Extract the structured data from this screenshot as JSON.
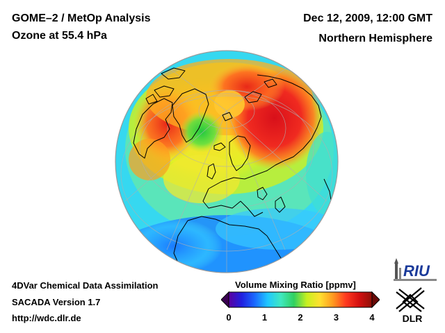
{
  "header": {
    "title_line1": "GOME–2 / MetOp Analysis",
    "title_line2": "Ozone at 55.4 hPa",
    "date": "Dec 12, 2009, 12:00 GMT",
    "region": "Northern Hemisphere"
  },
  "footer": {
    "line1": "4DVar Chemical Data Assimilation",
    "line2": "SACADA Version 1.7",
    "line3": "http://wdc.dlr.de"
  },
  "colorbar": {
    "label": "Volume Mixing Ratio [ppmv]",
    "ticks": [
      "0",
      "1",
      "2",
      "3",
      "4"
    ],
    "min": 0,
    "max": 4,
    "colors": [
      "#5a00a0",
      "#2020e0",
      "#1a6aff",
      "#20c8ff",
      "#40e8c0",
      "#30d060",
      "#c8f020",
      "#ffe030",
      "#ff9a20",
      "#ff3a20",
      "#d41010",
      "#901008"
    ]
  },
  "logos": {
    "riu": "RIU",
    "dlr": "DLR"
  }
}
